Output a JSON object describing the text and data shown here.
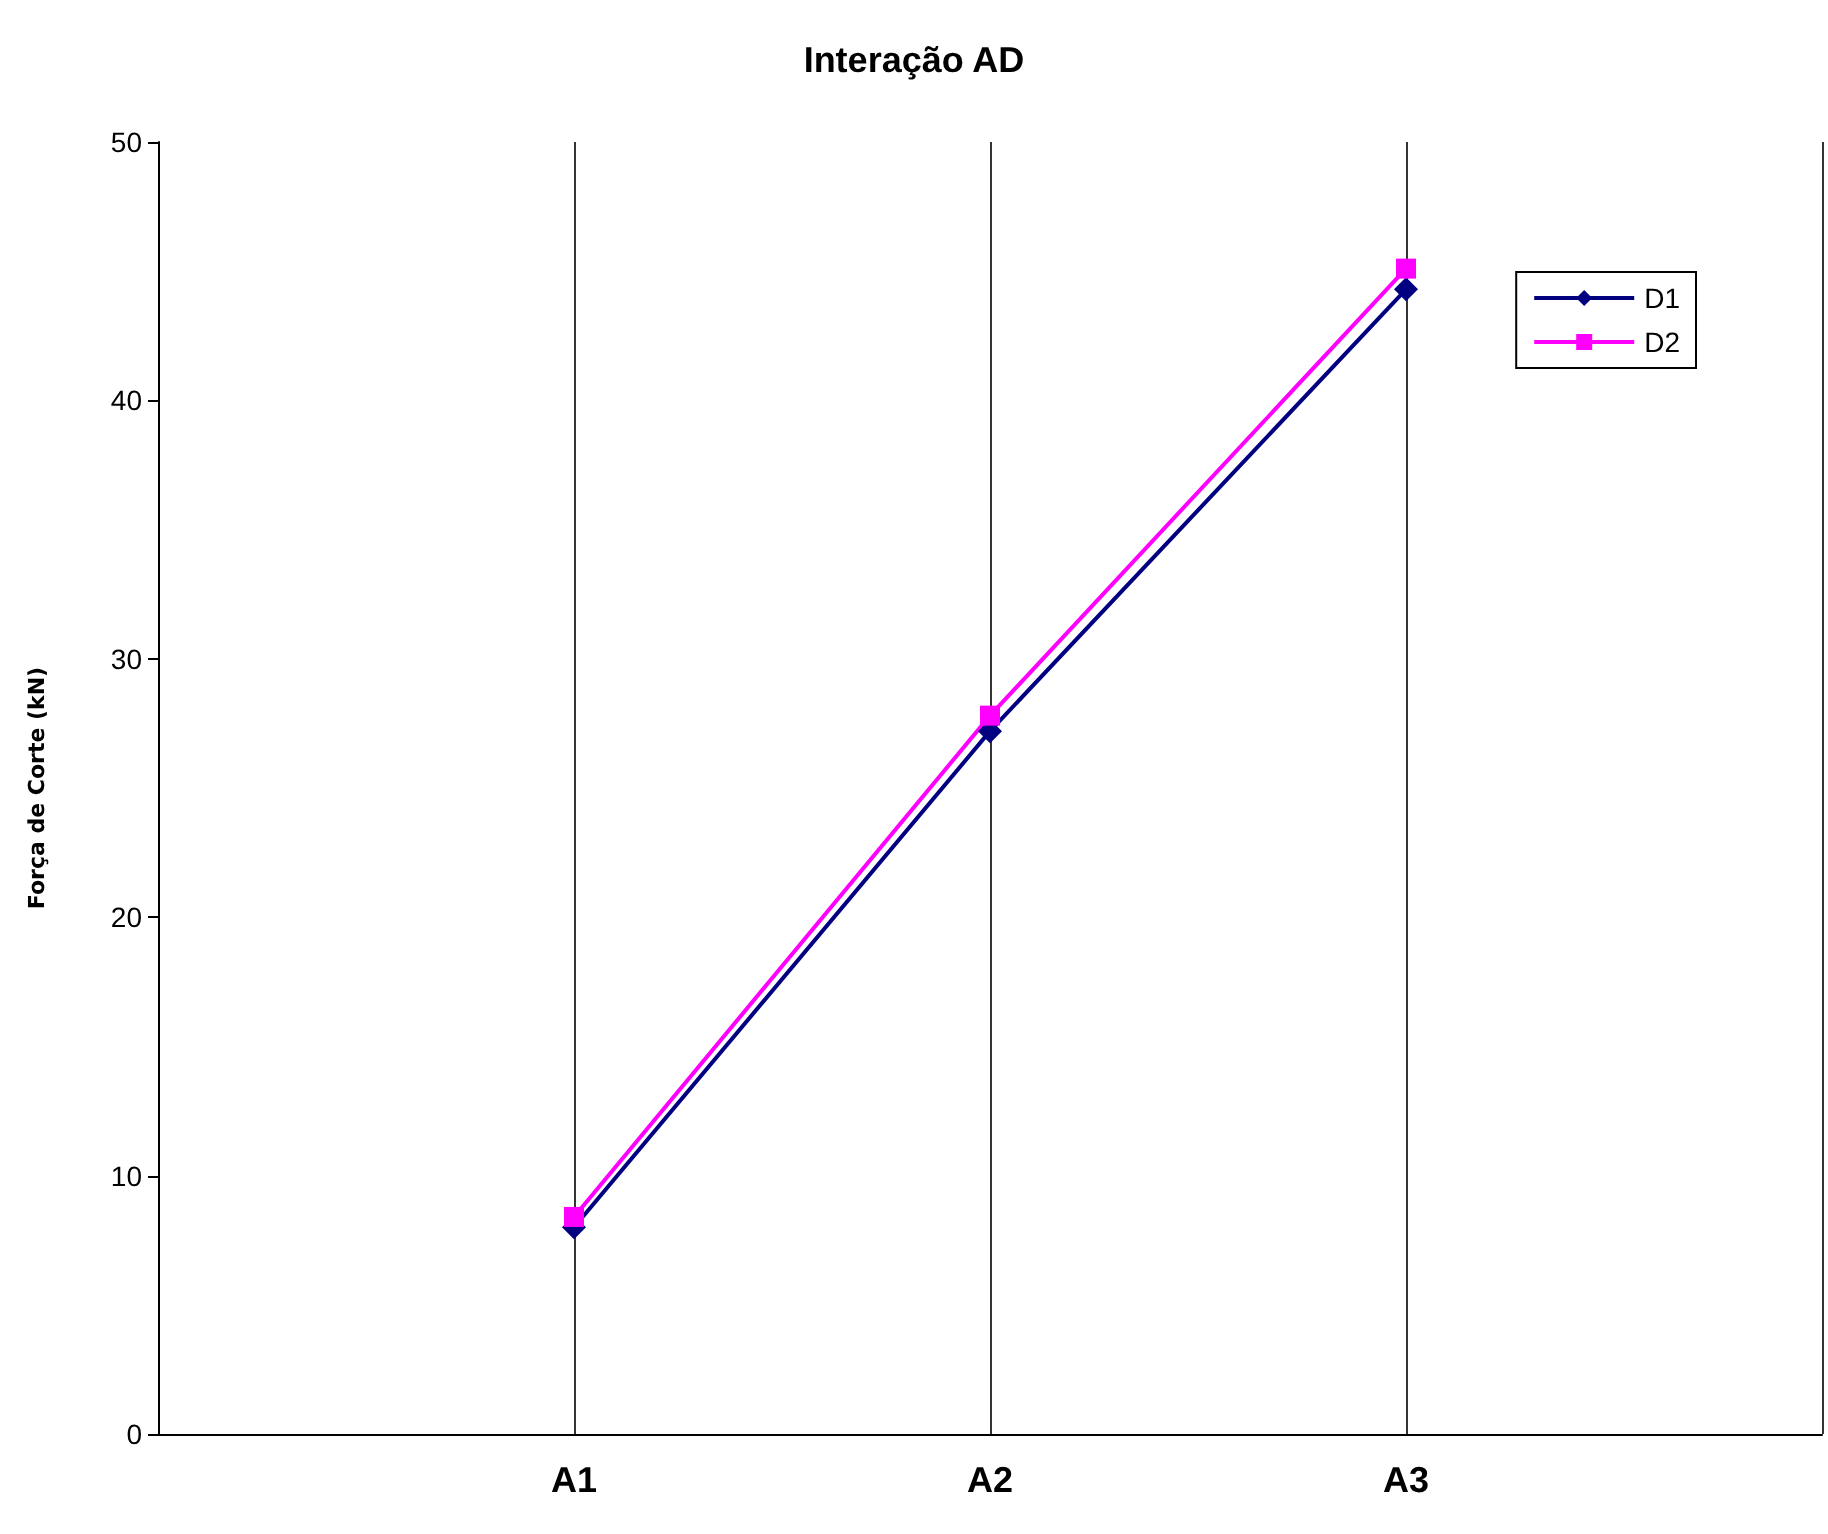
{
  "chart_data": {
    "type": "line",
    "title": "Interação AD",
    "ylabel": "Força de Corte (kN)",
    "categories": [
      null,
      "A1",
      "A2",
      "A3",
      null
    ],
    "series": [
      {
        "name": "D1",
        "color": "#000080",
        "marker": "diamond",
        "values": [
          null,
          8.0,
          27.2,
          44.3,
          null
        ]
      },
      {
        "name": "D2",
        "color": "#ff00ff",
        "marker": "square",
        "values": [
          null,
          8.4,
          27.8,
          45.1,
          null
        ]
      }
    ],
    "ylim": [
      0,
      50
    ],
    "yticks": [
      0,
      10,
      20,
      30,
      40,
      50
    ],
    "grid": "x",
    "legend": "top right",
    "line_style": "solid"
  }
}
